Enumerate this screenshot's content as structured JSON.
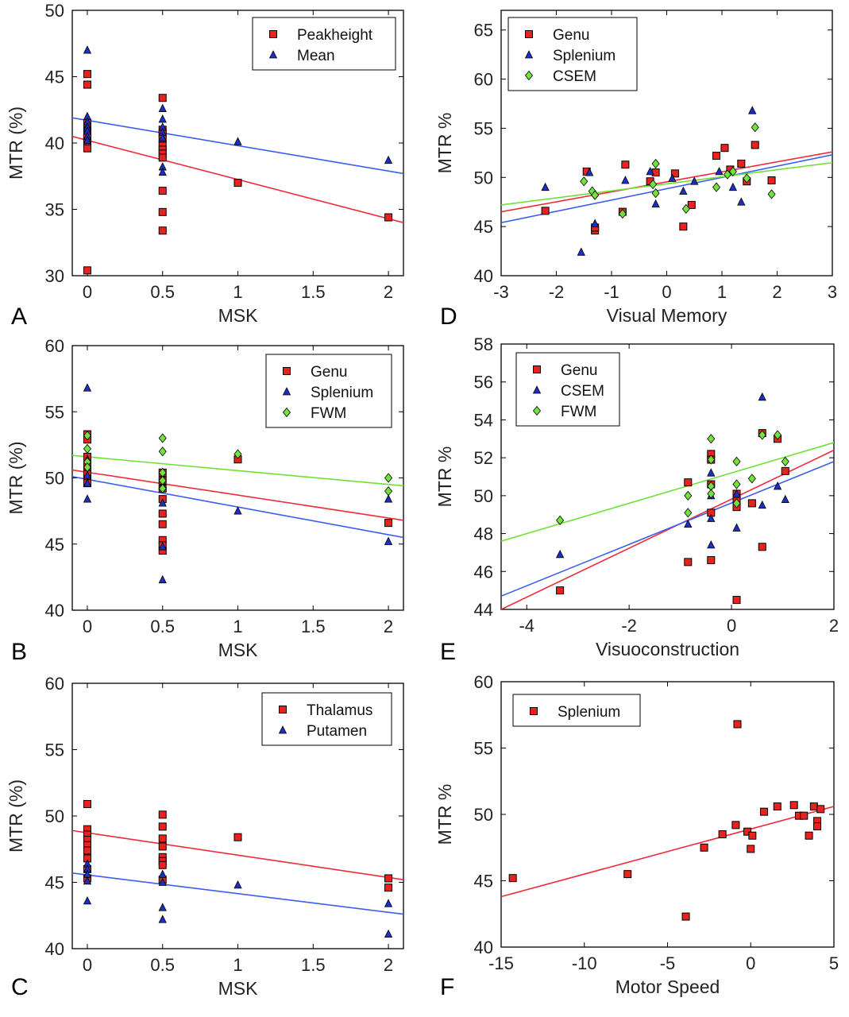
{
  "colors": {
    "red": "#e8231d",
    "blue": "#1b2fc4",
    "green": "#72e33a",
    "line_red": "#ef2a3a",
    "line_blue": "#3a5ef0",
    "line_green": "#6ee034"
  },
  "chart_data": [
    {
      "id": "A",
      "type": "scatter",
      "panel_label": "A",
      "xlabel": "MSK",
      "ylabel": "MTR (%)",
      "xlim": [
        -0.1,
        2.1
      ],
      "ylim": [
        30,
        50
      ],
      "xticks": [
        0,
        0.5,
        1,
        1.5,
        2
      ],
      "xticklabels": [
        "0",
        "0.5",
        "1",
        "1.5",
        "2"
      ],
      "yticks": [
        30,
        35,
        40,
        45,
        50
      ],
      "yticklabels": [
        "30",
        "35",
        "40",
        "45",
        "50"
      ],
      "series": [
        {
          "name": "Peakheight",
          "marker": "square",
          "color": "#e8231d",
          "x": [
            0,
            0,
            0,
            0,
            0,
            0,
            0,
            0,
            0,
            0,
            0,
            0,
            0.5,
            0.5,
            0.5,
            0.5,
            0.5,
            0.5,
            0.5,
            0.5,
            0.5,
            0.5,
            0.5,
            1,
            2
          ],
          "y": [
            45.2,
            44.4,
            41.2,
            40.9,
            40.6,
            40.3,
            40.1,
            39.8,
            39.6,
            41.5,
            40.4,
            30.4,
            43.4,
            41.0,
            40.7,
            40.3,
            39.8,
            39.5,
            39.2,
            38.9,
            36.4,
            34.8,
            33.4,
            37.0,
            34.4
          ],
          "fit": [
            40.5,
            34.0
          ]
        },
        {
          "name": "Mean",
          "marker": "triangle",
          "color": "#1b2fc4",
          "x": [
            0,
            0,
            0,
            0,
            0,
            0,
            0,
            0.5,
            0.5,
            0.5,
            0.5,
            0.5,
            0.5,
            0.5,
            1,
            2
          ],
          "y": [
            47.0,
            42.0,
            41.6,
            41.2,
            40.9,
            40.5,
            40.2,
            42.6,
            41.8,
            41.2,
            40.8,
            40.4,
            38.2,
            37.8,
            40.1,
            38.7
          ],
          "fit": [
            41.9,
            37.7
          ]
        }
      ]
    },
    {
      "id": "D",
      "type": "scatter",
      "panel_label": "D",
      "xlabel": "Visual Memory",
      "ylabel": "MTR %",
      "xlim": [
        -3,
        3
      ],
      "ylim": [
        40,
        67
      ],
      "xticks": [
        -3,
        -2,
        -1,
        0,
        1,
        2,
        3
      ],
      "xticklabels": [
        "-3",
        "-2",
        "-1",
        "0",
        "1",
        "2",
        "3"
      ],
      "yticks": [
        40,
        45,
        50,
        55,
        60,
        65
      ],
      "yticklabels": [
        "40",
        "45",
        "50",
        "55",
        "60",
        "65"
      ],
      "series": [
        {
          "name": "Genu",
          "marker": "square",
          "color": "#e8231d",
          "x": [
            -2.2,
            -1.45,
            -1.3,
            -1.3,
            -0.8,
            -0.75,
            -0.3,
            -0.2,
            0.15,
            0.3,
            0.45,
            0.9,
            1.05,
            1.15,
            1.35,
            1.45,
            1.6,
            1.9
          ],
          "y": [
            46.6,
            50.6,
            44.6,
            44.9,
            46.5,
            51.3,
            49.6,
            50.5,
            50.4,
            45.0,
            47.2,
            52.2,
            53.0,
            50.8,
            51.4,
            49.6,
            53.3,
            49.7
          ],
          "fit": [
            46.5,
            52.6
          ]
        },
        {
          "name": "Splenium",
          "marker": "triangle",
          "color": "#1b2fc4",
          "x": [
            -2.2,
            -1.55,
            -1.4,
            -1.3,
            -0.75,
            -0.2,
            -0.3,
            0.1,
            0.3,
            0.5,
            0.95,
            1.2,
            1.35,
            1.55
          ],
          "y": [
            49.0,
            42.4,
            50.5,
            45.3,
            49.7,
            47.3,
            50.6,
            49.9,
            48.6,
            49.6,
            50.6,
            49.0,
            47.5,
            56.8
          ],
          "fit": [
            45.4,
            52.3
          ]
        },
        {
          "name": "CSEM",
          "marker": "diamond",
          "color": "#72e33a",
          "x": [
            -1.5,
            -1.35,
            -1.3,
            -0.8,
            -0.2,
            -0.2,
            -0.25,
            0.35,
            0.9,
            1.1,
            1.2,
            1.45,
            1.6,
            1.9
          ],
          "y": [
            49.6,
            48.6,
            48.2,
            46.3,
            51.4,
            48.4,
            49.3,
            46.8,
            49.0,
            50.3,
            50.6,
            49.9,
            55.1,
            48.3
          ],
          "fit": [
            47.2,
            51.5
          ]
        }
      ]
    },
    {
      "id": "B",
      "type": "scatter",
      "panel_label": "B",
      "xlabel": "MSK",
      "ylabel": "MTR (%)",
      "xlim": [
        -0.1,
        2.1
      ],
      "ylim": [
        40,
        60
      ],
      "xticks": [
        0,
        0.5,
        1,
        1.5,
        2
      ],
      "xticklabels": [
        "0",
        "0.5",
        "1",
        "1.5",
        "2"
      ],
      "yticks": [
        40,
        45,
        50,
        55,
        60
      ],
      "yticklabels": [
        "40",
        "45",
        "50",
        "55",
        "60"
      ],
      "series": [
        {
          "name": "Genu",
          "marker": "square",
          "color": "#e8231d",
          "x": [
            0,
            0,
            0,
            0,
            0,
            0,
            0,
            0,
            0.5,
            0.5,
            0.5,
            0.5,
            0.5,
            0.5,
            0.5,
            0.5,
            0.5,
            1,
            2
          ],
          "y": [
            53.3,
            52.9,
            51.6,
            51.0,
            50.6,
            50.3,
            49.9,
            49.6,
            50.4,
            49.8,
            49.2,
            48.4,
            47.3,
            46.5,
            45.3,
            44.9,
            44.5,
            51.4,
            46.6
          ],
          "fit": [
            50.6,
            46.8
          ]
        },
        {
          "name": "Splenium",
          "marker": "triangle",
          "color": "#1b2fc4",
          "x": [
            0,
            0,
            0,
            0,
            0,
            0.5,
            0.5,
            0.5,
            0.5,
            1,
            2,
            2
          ],
          "y": [
            56.8,
            51.4,
            50.2,
            49.6,
            48.4,
            49.4,
            48.1,
            44.8,
            42.3,
            47.5,
            48.4,
            45.2
          ],
          "fit": [
            50.1,
            45.5
          ]
        },
        {
          "name": "FWM",
          "marker": "diamond",
          "color": "#72e33a",
          "x": [
            0,
            0,
            0,
            0,
            0.5,
            0.5,
            0.5,
            0.5,
            0.5,
            1,
            2,
            2
          ],
          "y": [
            53.2,
            52.2,
            51.2,
            50.8,
            53.0,
            52.0,
            50.4,
            49.8,
            49.2,
            51.8,
            50.0,
            49.0
          ],
          "fit": [
            51.7,
            49.4
          ]
        }
      ]
    },
    {
      "id": "E",
      "type": "scatter",
      "panel_label": "E",
      "xlabel": "Visuoconstruction",
      "ylabel": "MTR %",
      "xlim": [
        -4.5,
        2
      ],
      "ylim": [
        44,
        58
      ],
      "xticks": [
        -4,
        -2,
        0,
        2
      ],
      "xticklabels": [
        "-4",
        "-2",
        "0",
        "2"
      ],
      "yticks": [
        44,
        46,
        48,
        50,
        52,
        54,
        56,
        58
      ],
      "yticklabels": [
        "44",
        "46",
        "48",
        "50",
        "52",
        "54",
        "56",
        "58"
      ],
      "series": [
        {
          "name": "Genu",
          "marker": "square",
          "color": "#e8231d",
          "x": [
            -3.35,
            -0.85,
            -0.85,
            -0.4,
            -0.4,
            -0.4,
            -0.4,
            -0.4,
            0.1,
            0.1,
            0.1,
            0.1,
            0.4,
            0.6,
            0.6,
            0.9,
            1.05
          ],
          "y": [
            45.0,
            50.7,
            46.5,
            52.2,
            51.9,
            50.6,
            49.1,
            46.6,
            44.5,
            49.8,
            50.1,
            49.4,
            49.6,
            47.3,
            53.3,
            53.0,
            51.3
          ],
          "fit": [
            44.0,
            52.4
          ]
        },
        {
          "name": "CSEM",
          "marker": "triangle",
          "color": "#1b2fc4",
          "x": [
            -3.35,
            -0.85,
            -0.4,
            -0.4,
            -0.4,
            -0.4,
            0.1,
            0.1,
            0.6,
            0.6,
            0.9,
            1.05
          ],
          "y": [
            46.9,
            48.5,
            51.2,
            50.0,
            48.8,
            47.4,
            48.3,
            50.1,
            55.2,
            49.5,
            50.5,
            49.8
          ],
          "fit": [
            44.7,
            51.8
          ]
        },
        {
          "name": "FWM",
          "marker": "diamond",
          "color": "#72e33a",
          "x": [
            -3.35,
            -0.85,
            -0.85,
            -0.4,
            -0.4,
            -0.4,
            -0.4,
            0.1,
            0.1,
            0.1,
            0.4,
            0.6,
            0.9,
            1.05
          ],
          "y": [
            48.7,
            50.0,
            49.1,
            53.0,
            51.9,
            50.5,
            50.1,
            51.8,
            50.6,
            49.6,
            50.9,
            53.2,
            53.2,
            51.8
          ],
          "fit": [
            47.6,
            52.8
          ]
        }
      ]
    },
    {
      "id": "C",
      "type": "scatter",
      "panel_label": "C",
      "xlabel": "MSK",
      "ylabel": "MTR (%)",
      "xlim": [
        -0.1,
        2.1
      ],
      "ylim": [
        40,
        60
      ],
      "xticks": [
        0,
        0.5,
        1,
        1.5,
        2
      ],
      "xticklabels": [
        "0",
        "0.5",
        "1",
        "1.5",
        "2"
      ],
      "yticks": [
        40,
        45,
        50,
        55,
        60
      ],
      "yticklabels": [
        "40",
        "45",
        "50",
        "55",
        "60"
      ],
      "series": [
        {
          "name": "Thalamus",
          "marker": "square",
          "color": "#e8231d",
          "x": [
            0,
            0,
            0,
            0,
            0,
            0,
            0,
            0,
            0,
            0.5,
            0.5,
            0.5,
            0.5,
            0.5,
            0.5,
            0.5,
            0.5,
            1,
            2,
            2
          ],
          "y": [
            50.9,
            49.0,
            48.6,
            48.2,
            47.8,
            47.4,
            46.8,
            46.0,
            45.3,
            50.1,
            49.2,
            48.3,
            47.7,
            46.9,
            46.6,
            46.3,
            45.2,
            48.4,
            45.3,
            44.6
          ],
          "fit": [
            48.9,
            45.2
          ]
        },
        {
          "name": "Putamen",
          "marker": "triangle",
          "color": "#1b2fc4",
          "x": [
            0,
            0,
            0,
            0,
            0,
            0.5,
            0.5,
            0.5,
            0.5,
            1,
            2,
            2
          ],
          "y": [
            46.4,
            46.0,
            45.6,
            45.1,
            43.6,
            45.6,
            45.0,
            43.1,
            42.2,
            44.8,
            43.4,
            41.1
          ],
          "fit": [
            45.7,
            42.6
          ]
        }
      ]
    },
    {
      "id": "F",
      "type": "scatter",
      "panel_label": "F",
      "xlabel": "Motor Speed",
      "ylabel": "MTR %",
      "xlim": [
        -15,
        5
      ],
      "ylim": [
        40,
        60
      ],
      "xticks": [
        -15,
        -10,
        -5,
        0,
        5
      ],
      "xticklabels": [
        "-15",
        "-10",
        "-5",
        "0",
        "5"
      ],
      "yticks": [
        40,
        45,
        50,
        55,
        60
      ],
      "yticklabels": [
        "40",
        "45",
        "50",
        "55",
        "60"
      ],
      "series": [
        {
          "name": "Splenium",
          "marker": "square",
          "color": "#e8231d",
          "x": [
            -14.3,
            -7.4,
            -3.9,
            -2.8,
            -1.7,
            -0.9,
            -0.8,
            -0.2,
            0.1,
            0.0,
            0.8,
            1.6,
            2.6,
            2.9,
            3.2,
            3.5,
            3.8,
            4.0,
            4.0,
            4.2
          ],
          "y": [
            45.2,
            45.5,
            42.3,
            47.5,
            48.5,
            49.2,
            56.8,
            48.7,
            48.4,
            47.4,
            50.2,
            50.6,
            50.7,
            49.9,
            49.9,
            48.4,
            50.6,
            49.5,
            49.1,
            50.4
          ],
          "fit": [
            43.8,
            50.6
          ]
        }
      ]
    }
  ]
}
